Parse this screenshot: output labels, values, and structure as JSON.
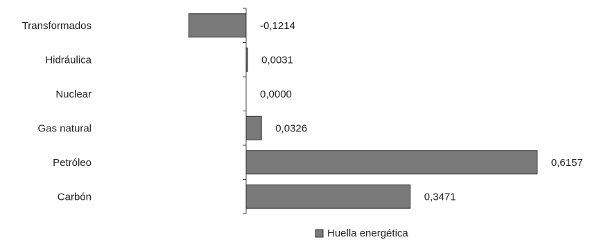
{
  "chart_data": {
    "type": "bar",
    "orientation": "horizontal",
    "categories": [
      "Transformados",
      "Hidráulica",
      "Nuclear",
      "Gas natural",
      "Petróleo",
      "Carbón"
    ],
    "series": [
      {
        "name": "Huella energética",
        "values": [
          -0.1214,
          0.0031,
          0.0,
          0.0326,
          0.6157,
          0.3471
        ],
        "labels": [
          "-0,1214",
          "0,0031",
          "0,0000",
          "0,0326",
          "0,6157",
          "0,3471"
        ],
        "color": "#7a7a7a"
      }
    ],
    "xlim": [
      -0.1214,
      0.6157
    ],
    "grid": false,
    "legend": "bottom-center"
  }
}
